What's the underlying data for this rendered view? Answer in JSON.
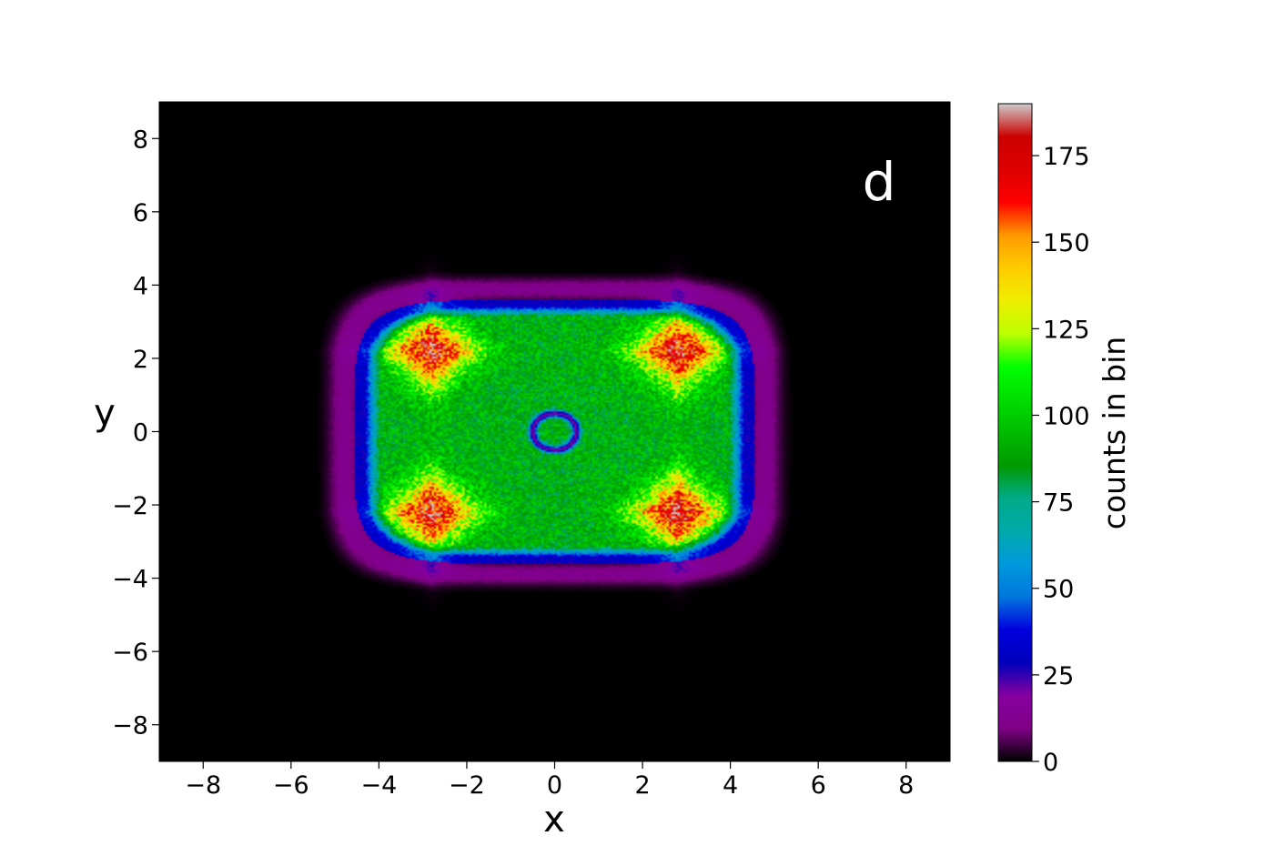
{
  "panel_label": "d",
  "chart_data": {
    "type": "heatmap",
    "title": "",
    "xlabel": "x",
    "ylabel": "y",
    "xlim": [
      -9,
      9
    ],
    "ylim": [
      -9,
      9
    ],
    "xticks": [
      -8,
      -6,
      -4,
      -2,
      0,
      2,
      4,
      6,
      8
    ],
    "yticks": [
      -8,
      -6,
      -4,
      -2,
      0,
      2,
      4,
      6,
      8
    ],
    "xtick_labels": [
      "−8",
      "−6",
      "−4",
      "−2",
      "0",
      "2",
      "4",
      "6",
      "8"
    ],
    "ytick_labels": [
      "−8",
      "−6",
      "−4",
      "−2",
      "0",
      "2",
      "4",
      "6",
      "8"
    ],
    "grid": false,
    "colorbar": {
      "label": "counts in bin",
      "range": [
        0,
        190
      ],
      "ticks": [
        0,
        25,
        50,
        75,
        100,
        125,
        150,
        175
      ],
      "tick_labels": [
        "0",
        "25",
        "50",
        "75",
        "100",
        "125",
        "150",
        "175"
      ],
      "colormap": "nipy_spectral",
      "stops": [
        {
          "v": 0.0,
          "c": "#000000"
        },
        {
          "v": 0.05,
          "c": "#7f0085"
        },
        {
          "v": 0.1,
          "c": "#8600a0"
        },
        {
          "v": 0.15,
          "c": "#0000bb"
        },
        {
          "v": 0.2,
          "c": "#0000dd"
        },
        {
          "v": 0.25,
          "c": "#0077dd"
        },
        {
          "v": 0.3,
          "c": "#0099dd"
        },
        {
          "v": 0.35,
          "c": "#00aaaa"
        },
        {
          "v": 0.4,
          "c": "#00aa88"
        },
        {
          "v": 0.45,
          "c": "#009900"
        },
        {
          "v": 0.5,
          "c": "#00bb00"
        },
        {
          "v": 0.55,
          "c": "#00dd00"
        },
        {
          "v": 0.6,
          "c": "#00ff00"
        },
        {
          "v": 0.65,
          "c": "#bbff00"
        },
        {
          "v": 0.7,
          "c": "#eeee00"
        },
        {
          "v": 0.75,
          "c": "#ffcc00"
        },
        {
          "v": 0.8,
          "c": "#ff9900"
        },
        {
          "v": 0.85,
          "c": "#ff0000"
        },
        {
          "v": 0.9,
          "c": "#dd0000"
        },
        {
          "v": 0.95,
          "c": "#cc0000"
        },
        {
          "v": 1.0,
          "c": "#cccccc"
        }
      ]
    },
    "density": {
      "description_of_values": "counts per bin",
      "outer_region": {
        "x_halfwidth": 4.8,
        "y_halfwidth": 3.9,
        "edge_counts": 12
      },
      "plateau": {
        "x_halfwidth": 4.3,
        "y_halfwidth": 3.4,
        "counts": 90
      },
      "hotspots": [
        {
          "x": -2.8,
          "y": 2.2,
          "peak": 175
        },
        {
          "x": 2.8,
          "y": 2.2,
          "peak": 175
        },
        {
          "x": -2.8,
          "y": -2.2,
          "peak": 175
        },
        {
          "x": 2.8,
          "y": -2.2,
          "peak": 175
        }
      ],
      "center_ring": {
        "x": 0,
        "y": 0,
        "radius": 0.5,
        "counts": 20
      }
    }
  }
}
